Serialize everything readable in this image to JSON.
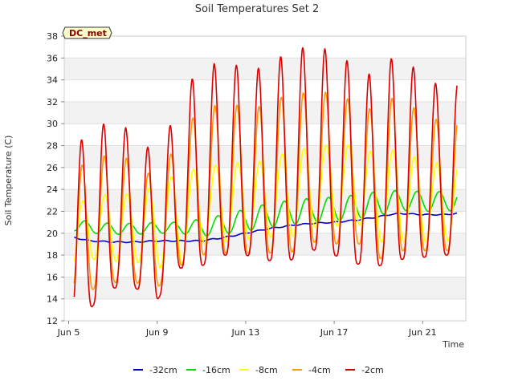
{
  "chart_data": {
    "type": "line",
    "title": "Soil Temperatures Set 2",
    "xlabel": "Time",
    "ylabel": "Soil Temperature (C)",
    "badge": "DC_met",
    "x_ticks": [
      "Jun 5",
      "Jun 9",
      "Jun 13",
      "Jun 17",
      "Jun 21"
    ],
    "y_ticks": [
      12,
      14,
      16,
      18,
      20,
      22,
      24,
      26,
      28,
      30,
      32,
      34,
      36,
      38
    ],
    "xlim": [
      "2024-06-04T19:00",
      "2024-06-22T23:00"
    ],
    "ylim": [
      12,
      38
    ],
    "x_axis_note": "day offsets from Jun 5 00:00",
    "band_stripes": true,
    "legend_position": "bottom-center",
    "days": [
      0,
      1,
      2,
      3,
      4,
      5,
      6,
      7,
      8,
      9,
      10,
      11,
      12,
      13,
      14,
      15,
      16,
      17
    ],
    "series": [
      {
        "name": "-32cm",
        "color": "#0000cc",
        "points": [
          [
            0,
            19.7
          ],
          [
            0.5,
            19.5
          ],
          [
            1,
            19.3
          ],
          [
            2,
            19.2
          ],
          [
            3,
            19.2
          ],
          [
            4,
            19.3
          ],
          [
            5,
            19.3
          ],
          [
            6,
            19.3
          ],
          [
            7,
            19.6
          ],
          [
            8,
            20.0
          ],
          [
            9,
            20.4
          ],
          [
            10,
            20.7
          ],
          [
            11,
            20.9
          ],
          [
            12,
            21.0
          ],
          [
            13,
            21.2
          ],
          [
            14,
            21.5
          ],
          [
            14.5,
            21.7
          ],
          [
            15,
            21.8
          ],
          [
            16,
            21.7
          ],
          [
            17,
            21.7
          ],
          [
            17.5,
            21.8
          ],
          [
            18,
            21.9
          ]
        ]
      },
      {
        "name": "-16cm",
        "color": "#00dd00",
        "amp": [
          0.6,
          0.5,
          0.5,
          0.5,
          0.5,
          0.5,
          0.8,
          0.9,
          1.0,
          1.1,
          1.1,
          1.1,
          1.1,
          1.1,
          1.1,
          0.9,
          0.9,
          0.9
        ],
        "phase": 0.75
      },
      {
        "name": "-8cm",
        "color": "#ffff00",
        "tmin": [
          16.5,
          17.6,
          17.4,
          17.4,
          16.8,
          17.0,
          19.0,
          19.2,
          19.4,
          19.6,
          19.6,
          20.5,
          20.6,
          21.0,
          19.2,
          19.2,
          19.2,
          19.3
        ],
        "tmax": [
          22.2,
          23.4,
          23.6,
          23.6,
          24.4,
          25.6,
          26.0,
          26.3,
          26.5,
          26.6,
          27.6,
          27.8,
          28.2,
          28.0,
          27.2,
          27.8,
          26.5,
          26.4
        ],
        "phase": 0.64
      },
      {
        "name": "-4cm",
        "color": "#ff9900",
        "tmin": [
          14.0,
          14.8,
          15.5,
          15.5,
          15.0,
          17.0,
          18.0,
          18.2,
          18.2,
          18.2,
          18.2,
          19.2,
          19.0,
          19.2,
          17.6,
          18.4,
          18.4,
          18.4
        ],
        "tmax": [
          25.0,
          27.0,
          27.1,
          26.7,
          24.7,
          28.8,
          31.6,
          31.7,
          31.7,
          31.5,
          33.0,
          32.7,
          33.0,
          31.8,
          31.1,
          33.1,
          30.4,
          30.4
        ],
        "phase": 0.61
      },
      {
        "name": "-2cm",
        "color": "#dd0000",
        "tmin": [
          12.2,
          13.2,
          15.0,
          15.0,
          13.9,
          16.8,
          17.0,
          18.0,
          18.0,
          17.5,
          17.5,
          18.5,
          18.0,
          17.2,
          17.0,
          17.6,
          17.8,
          18.0
        ],
        "tmax": [
          26.8,
          29.8,
          30.1,
          29.3,
          26.8,
          32.0,
          35.6,
          35.4,
          35.3,
          34.9,
          37.0,
          36.9,
          36.8,
          35.0,
          34.2,
          37.2,
          33.7,
          33.7
        ],
        "phase": 0.58
      }
    ]
  }
}
